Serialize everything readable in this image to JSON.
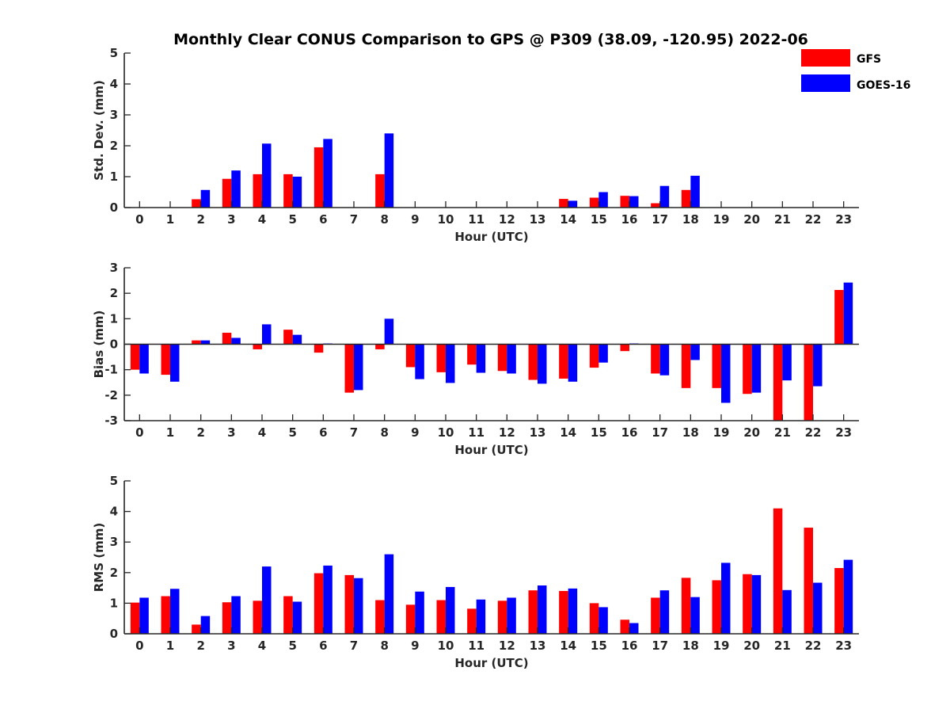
{
  "title": "Monthly Clear CONUS Comparison to GPS @ P309 (38.09, -120.95) 2022-06",
  "legend": [
    {
      "name": "GFS",
      "color": "#ff0000"
    },
    {
      "name": "GOES-16",
      "color": "#0000ff"
    }
  ],
  "chart_data": [
    {
      "type": "bar",
      "xlabel": "Hour (UTC)",
      "ylabel": "Std. Dev. (mm)",
      "ylim": [
        0,
        5
      ],
      "yticks": [
        0,
        1,
        2,
        3,
        4,
        5
      ],
      "categories": [
        "0",
        "1",
        "2",
        "3",
        "4",
        "5",
        "6",
        "7",
        "8",
        "9",
        "10",
        "11",
        "12",
        "13",
        "14",
        "15",
        "16",
        "17",
        "18",
        "19",
        "20",
        "21",
        "22",
        "23"
      ],
      "series": [
        {
          "name": "GFS",
          "values": [
            0,
            0,
            0.27,
            0.93,
            1.08,
            1.08,
            1.95,
            0,
            1.08,
            0,
            0,
            0,
            0,
            0,
            0.28,
            0.32,
            0.38,
            0.14,
            0.57,
            0,
            0,
            0,
            0,
            0
          ]
        },
        {
          "name": "GOES-16",
          "values": [
            0,
            0,
            0.57,
            1.2,
            2.07,
            1.0,
            2.22,
            0,
            2.4,
            0,
            0,
            0,
            0,
            0,
            0.22,
            0.5,
            0.37,
            0.7,
            1.03,
            0,
            0,
            0,
            0,
            0
          ]
        }
      ]
    },
    {
      "type": "bar",
      "xlabel": "Hour (UTC)",
      "ylabel": "Bias (mm)",
      "ylim": [
        -3,
        3
      ],
      "yticks": [
        -3,
        -2,
        -1,
        0,
        1,
        2,
        3
      ],
      "zero_line": true,
      "categories": [
        "0",
        "1",
        "2",
        "3",
        "4",
        "5",
        "6",
        "7",
        "8",
        "9",
        "10",
        "11",
        "12",
        "13",
        "14",
        "15",
        "16",
        "17",
        "18",
        "19",
        "20",
        "21",
        "22",
        "23"
      ],
      "series": [
        {
          "name": "GFS",
          "values": [
            -1.0,
            -1.2,
            0.15,
            0.45,
            -0.2,
            0.57,
            -0.33,
            -1.9,
            -0.2,
            -0.9,
            -1.1,
            -0.8,
            -1.05,
            -1.4,
            -1.35,
            -0.92,
            -0.27,
            -1.15,
            -1.72,
            -1.72,
            -1.95,
            -3.0,
            -3.0,
            2.13
          ]
        },
        {
          "name": "GOES-16",
          "values": [
            -1.15,
            -1.47,
            0.15,
            0.25,
            0.78,
            0.37,
            0.03,
            -1.8,
            1.0,
            -1.37,
            -1.52,
            -1.12,
            -1.15,
            -1.55,
            -1.47,
            -0.72,
            0.03,
            -1.22,
            -0.62,
            -2.3,
            -1.9,
            -1.42,
            -1.65,
            2.42
          ]
        }
      ]
    },
    {
      "type": "bar",
      "xlabel": "Hour (UTC)",
      "ylabel": "RMS (mm)",
      "ylim": [
        0,
        5
      ],
      "yticks": [
        0,
        1,
        2,
        3,
        4,
        5
      ],
      "categories": [
        "0",
        "1",
        "2",
        "3",
        "4",
        "5",
        "6",
        "7",
        "8",
        "9",
        "10",
        "11",
        "12",
        "13",
        "14",
        "15",
        "16",
        "17",
        "18",
        "19",
        "20",
        "21",
        "22",
        "23"
      ],
      "series": [
        {
          "name": "GFS",
          "values": [
            1.02,
            1.23,
            0.3,
            1.03,
            1.08,
            1.23,
            1.98,
            1.92,
            1.1,
            0.95,
            1.1,
            0.82,
            1.08,
            1.42,
            1.4,
            1.0,
            0.46,
            1.18,
            1.83,
            1.75,
            1.95,
            4.1,
            3.47,
            2.15
          ]
        },
        {
          "name": "GOES-16",
          "values": [
            1.18,
            1.47,
            0.58,
            1.23,
            2.2,
            1.05,
            2.23,
            1.82,
            2.6,
            1.38,
            1.53,
            1.12,
            1.18,
            1.58,
            1.48,
            0.87,
            0.35,
            1.42,
            1.2,
            2.32,
            1.92,
            1.43,
            1.67,
            2.42
          ]
        }
      ]
    }
  ]
}
